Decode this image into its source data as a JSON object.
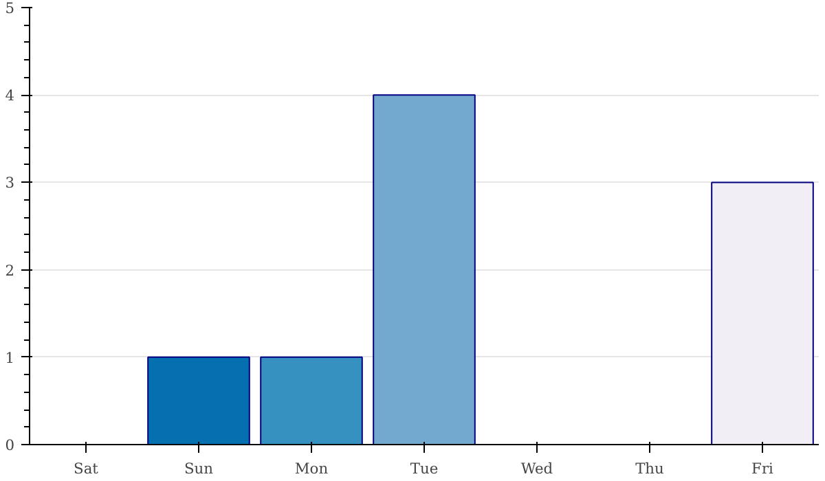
{
  "chart_data": {
    "type": "bar",
    "categories": [
      "Sat",
      "Sun",
      "Mon",
      "Tue",
      "Wed",
      "Thu",
      "Fri"
    ],
    "values": [
      0,
      1,
      1,
      4,
      0,
      0,
      3
    ],
    "colors": [
      null,
      "#0570b0",
      "#3690c0",
      "#74a9cf",
      null,
      null,
      "#f1eef6"
    ],
    "ylim": [
      0,
      5
    ],
    "yticks": [
      0,
      1,
      2,
      3,
      4,
      5
    ],
    "grid": "y"
  }
}
